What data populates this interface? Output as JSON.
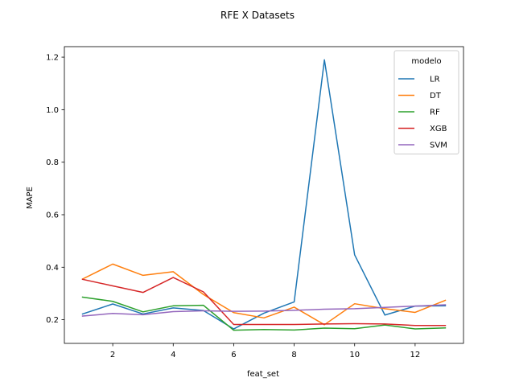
{
  "chart_data": {
    "type": "line",
    "title": "RFE X Datasets",
    "xlabel": "feat_set",
    "ylabel": "MAPE",
    "x": [
      1,
      2,
      3,
      4,
      5,
      6,
      7,
      8,
      9,
      10,
      11,
      12,
      13
    ],
    "xlim": [
      0.4,
      13.6
    ],
    "ylim": [
      0.11,
      1.24
    ],
    "xticks": [
      2,
      4,
      6,
      8,
      10,
      12
    ],
    "yticks": [
      0.2,
      0.4,
      0.6,
      0.8,
      1.0,
      1.2
    ],
    "ytick_labels": [
      "0.2",
      "0.4",
      "0.6",
      "0.8",
      "1.0",
      "1.2"
    ],
    "grid": false,
    "legend": {
      "title": "modelo",
      "placement": "top-right"
    },
    "series": [
      {
        "name": "LR",
        "color": "#1f77b4",
        "values": [
          0.222,
          0.26,
          0.222,
          0.245,
          0.235,
          0.165,
          0.225,
          0.268,
          1.19,
          0.447,
          0.218,
          0.252,
          0.253
        ]
      },
      {
        "name": "DT",
        "color": "#ff7f0e",
        "values": [
          0.355,
          0.412,
          0.369,
          0.383,
          0.296,
          0.227,
          0.207,
          0.248,
          0.181,
          0.261,
          0.242,
          0.228,
          0.274
        ]
      },
      {
        "name": "RF",
        "color": "#2ca02c",
        "values": [
          0.286,
          0.27,
          0.23,
          0.253,
          0.255,
          0.16,
          0.163,
          0.161,
          0.168,
          0.166,
          0.18,
          0.165,
          0.169
        ]
      },
      {
        "name": "XGB",
        "color": "#d62728",
        "values": [
          0.354,
          0.329,
          0.304,
          0.361,
          0.306,
          0.182,
          0.182,
          0.182,
          0.184,
          0.185,
          0.184,
          0.178,
          0.178
        ]
      },
      {
        "name": "SVM",
        "color": "#9467bd",
        "values": [
          0.214,
          0.224,
          0.219,
          0.231,
          0.234,
          0.232,
          0.233,
          0.236,
          0.24,
          0.242,
          0.247,
          0.252,
          0.257
        ]
      }
    ]
  }
}
